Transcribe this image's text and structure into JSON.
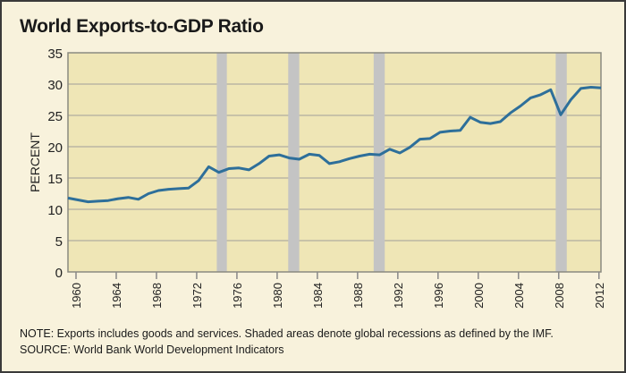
{
  "chart_data": {
    "type": "line",
    "title": "World Exports-to-GDP Ratio",
    "xlabel": "",
    "ylabel": "PERCENT",
    "ylim": [
      0,
      35
    ],
    "xlim": [
      1960,
      2013
    ],
    "yticks": [
      0,
      5,
      10,
      15,
      20,
      25,
      30,
      35
    ],
    "xticks": [
      "1960",
      "1964",
      "1968",
      "1972",
      "1976",
      "1980",
      "1984",
      "1988",
      "1992",
      "1996",
      "2000",
      "2004",
      "2008",
      "2012"
    ],
    "grid": "horizontal",
    "colors": {
      "line": "#2e6f9a",
      "plot_bg": "#efe6b6",
      "recession": "#c4c4c4",
      "background": "#f8f2dc"
    },
    "recessions": [
      [
        1974.8,
        1975.8
      ],
      [
        1981.9,
        1983.0
      ],
      [
        1990.4,
        1991.5
      ],
      [
        2008.5,
        2009.6
      ]
    ],
    "x": [
      1960,
      1961,
      1962,
      1963,
      1964,
      1965,
      1966,
      1967,
      1968,
      1969,
      1970,
      1971,
      1972,
      1973,
      1974,
      1975,
      1976,
      1977,
      1978,
      1979,
      1980,
      1981,
      1982,
      1983,
      1984,
      1985,
      1986,
      1987,
      1988,
      1989,
      1990,
      1991,
      1992,
      1993,
      1994,
      1995,
      1996,
      1997,
      1998,
      1999,
      2000,
      2001,
      2002,
      2003,
      2004,
      2005,
      2006,
      2007,
      2008,
      2009,
      2010,
      2011,
      2012,
      2013
    ],
    "values": [
      11.8,
      11.5,
      11.2,
      11.3,
      11.4,
      11.7,
      11.9,
      11.6,
      12.5,
      13.0,
      13.2,
      13.3,
      13.4,
      14.6,
      16.8,
      15.9,
      16.5,
      16.6,
      16.3,
      17.3,
      18.5,
      18.7,
      18.2,
      18.0,
      18.8,
      18.6,
      17.3,
      17.6,
      18.1,
      18.5,
      18.8,
      18.7,
      19.6,
      19.0,
      19.9,
      21.2,
      21.3,
      22.3,
      22.5,
      22.6,
      24.7,
      23.9,
      23.7,
      24.0,
      25.4,
      26.5,
      27.8,
      28.3,
      29.1,
      25.1,
      27.5,
      29.3,
      29.5,
      29.4
    ]
  },
  "notes": {
    "note_label": "NOTE:",
    "note_text": " Exports includes goods and services. Shaded areas denote global recessions as defined by the IMF.",
    "source_label": "SOURCE:",
    "source_text": " World Bank World Development Indicators"
  }
}
